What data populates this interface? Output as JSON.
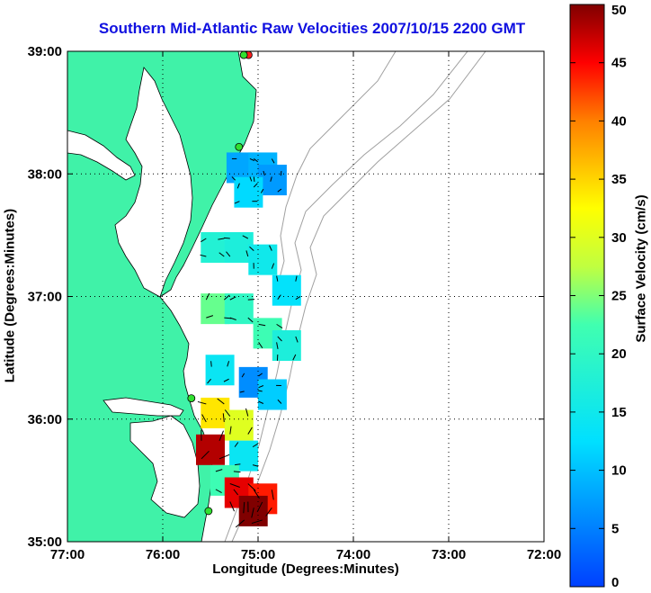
{
  "chart_data": {
    "type": "heatmap",
    "title": "Southern Mid-Atlantic Raw Velocities 2007/10/15 2200 GMT",
    "xlabel": "Longitude (Degrees:Minutes)",
    "ylabel": "Latitude (Degrees:Minutes)",
    "colorbar_label": "Surface Velocity (cm/s)",
    "x_ticks": [
      "77:00",
      "76:00",
      "75:00",
      "74:00",
      "73:00",
      "72:00"
    ],
    "x_tick_values": [
      -77,
      -76,
      -75,
      -74,
      -73,
      -72
    ],
    "y_ticks": [
      "39:00",
      "38:00",
      "37:00",
      "36:00",
      "35:00"
    ],
    "y_tick_values": [
      39,
      38,
      37,
      36,
      35
    ],
    "xlim": [
      -77,
      -72
    ],
    "ylim": [
      35,
      39
    ],
    "colorbar_ticks": [
      "50",
      "45",
      "40",
      "35",
      "30",
      "25",
      "20",
      "15",
      "10",
      "5",
      "0"
    ],
    "colorbar_range": [
      0,
      50
    ],
    "grid": "dotted",
    "stations": [
      {
        "lon": -75.1,
        "lat": 38.97,
        "color": "#ff2020"
      },
      {
        "lon": -75.15,
        "lat": 38.97,
        "color": "#30e030"
      },
      {
        "lon": -75.2,
        "lat": 38.22,
        "color": "#30e030"
      },
      {
        "lon": -75.7,
        "lat": 36.17,
        "color": "#30e030"
      },
      {
        "lon": -75.52,
        "lat": 35.25,
        "color": "#30e030"
      }
    ],
    "velocity_cells": [
      {
        "lon": -75.18,
        "lat": 38.05,
        "value": 8
      },
      {
        "lon": -74.95,
        "lat": 38.05,
        "value": 9
      },
      {
        "lon": -74.85,
        "lat": 37.95,
        "value": 7
      },
      {
        "lon": -75.1,
        "lat": 37.85,
        "value": 12
      },
      {
        "lon": -75.45,
        "lat": 37.4,
        "value": 18
      },
      {
        "lon": -75.2,
        "lat": 37.4,
        "value": 17
      },
      {
        "lon": -74.95,
        "lat": 37.3,
        "value": 15
      },
      {
        "lon": -74.7,
        "lat": 37.05,
        "value": 13
      },
      {
        "lon": -75.45,
        "lat": 36.9,
        "value": 24
      },
      {
        "lon": -75.2,
        "lat": 36.9,
        "value": 20
      },
      {
        "lon": -74.9,
        "lat": 36.7,
        "value": 22
      },
      {
        "lon": -74.7,
        "lat": 36.6,
        "value": 17
      },
      {
        "lon": -75.4,
        "lat": 36.4,
        "value": 14
      },
      {
        "lon": -75.05,
        "lat": 36.3,
        "value": 6
      },
      {
        "lon": -74.85,
        "lat": 36.2,
        "value": 11
      },
      {
        "lon": -75.45,
        "lat": 36.05,
        "value": 34
      },
      {
        "lon": -75.2,
        "lat": 35.95,
        "value": 30
      },
      {
        "lon": -75.5,
        "lat": 35.75,
        "value": 48
      },
      {
        "lon": -75.15,
        "lat": 35.7,
        "value": 14
      },
      {
        "lon": -75.35,
        "lat": 35.5,
        "value": 22
      },
      {
        "lon": -75.2,
        "lat": 35.4,
        "value": 46
      },
      {
        "lon": -74.95,
        "lat": 35.35,
        "value": 44
      },
      {
        "lon": -75.05,
        "lat": 35.25,
        "value": 50
      }
    ]
  }
}
